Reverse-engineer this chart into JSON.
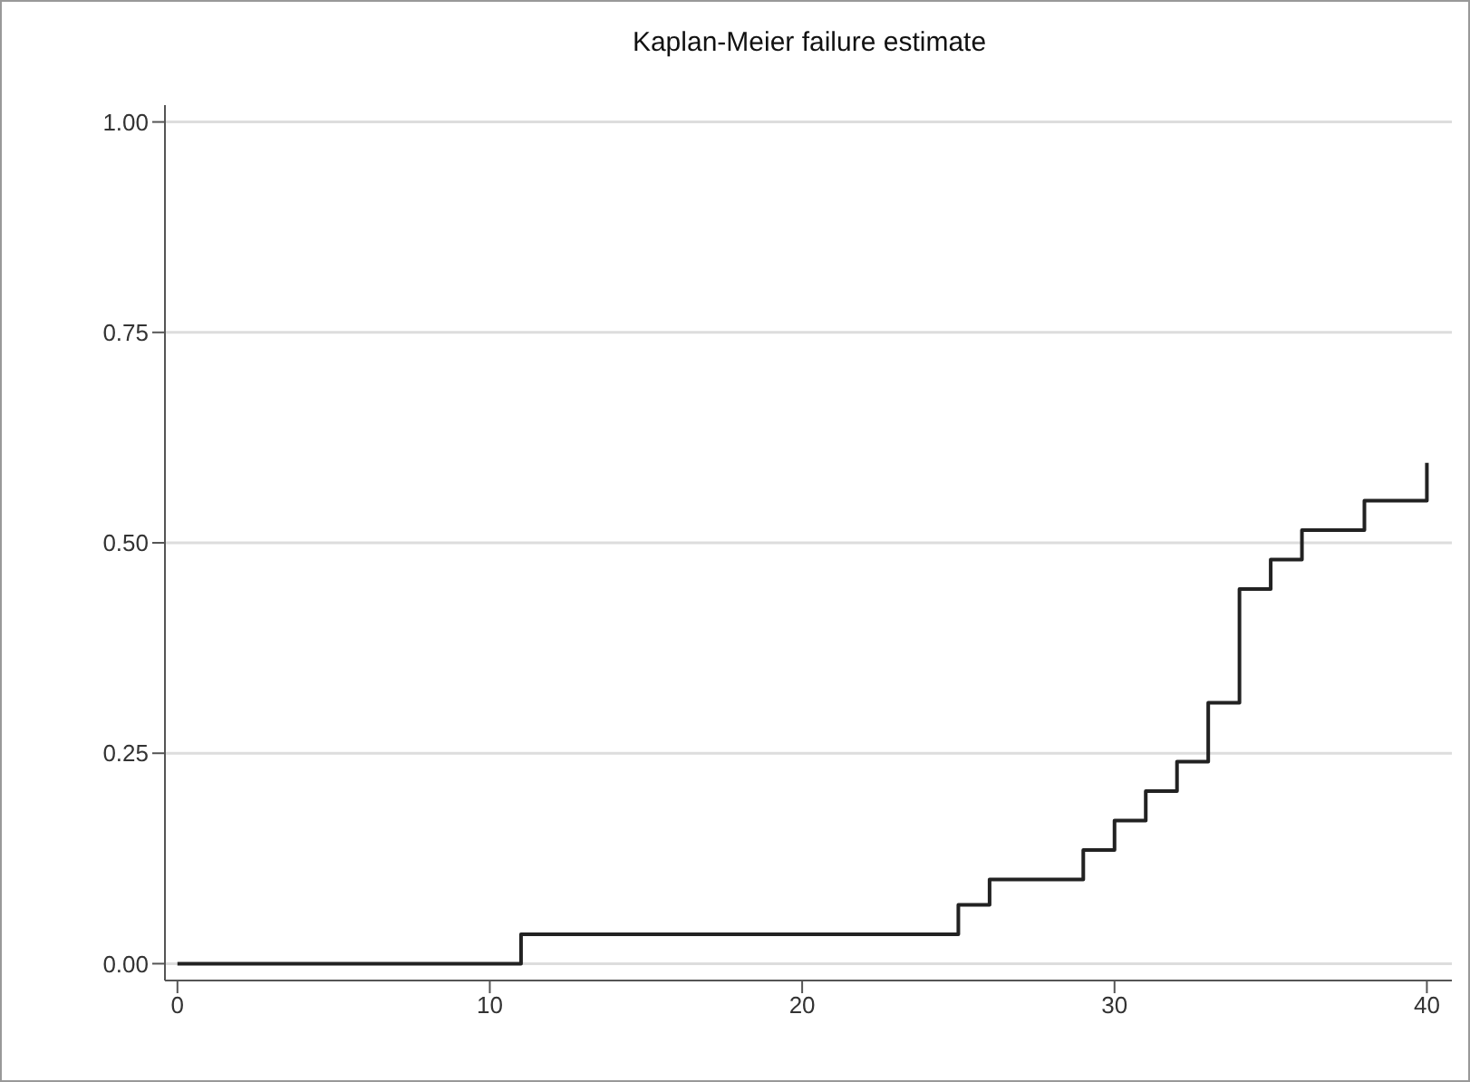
{
  "chart_data": {
    "type": "step",
    "title": "Kaplan-Meier failure estimate",
    "x": [
      0,
      11,
      25,
      26,
      29,
      30,
      31,
      32,
      33,
      34,
      35,
      36,
      38,
      40
    ],
    "series": [
      {
        "color": "#222222",
        "values": [
          0,
          0.035,
          0.07,
          0.1,
          0.135,
          0.17,
          0.205,
          0.24,
          0.31,
          0.445,
          0.48,
          0.515,
          0.55,
          0.595
        ]
      }
    ],
    "xlim": [
      -0.4,
      40.8
    ],
    "xticks": [
      0,
      10,
      20,
      30,
      40
    ],
    "ylim": [
      -0.02,
      1.02
    ],
    "yticks": [
      {
        "value": 0,
        "label": "0.00"
      },
      {
        "value": 0.25,
        "label": "0.25"
      },
      {
        "value": 0.5,
        "label": "0.50"
      },
      {
        "value": 0.75,
        "label": "0.75"
      },
      {
        "value": 1,
        "label": "1.00"
      }
    ],
    "grid": "y",
    "legend": false,
    "marker": "none",
    "line_style": "solid"
  }
}
